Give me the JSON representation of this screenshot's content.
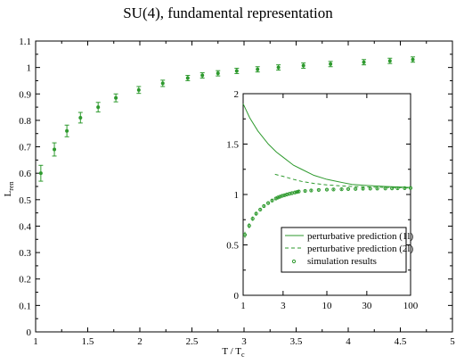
{
  "chart_data": [
    {
      "type": "scatter",
      "title": "SU(4), fundamental representation",
      "xlabel": "T / T",
      "xlabel_sub": "c",
      "ylabel": "L",
      "ylabel_sub": "ren",
      "xlim": [
        1,
        5
      ],
      "ylim": [
        0,
        1.1
      ],
      "x_ticks": [
        1,
        1.5,
        2,
        2.5,
        3,
        3.5,
        4,
        4.5,
        5
      ],
      "x_tick_labels": [
        "1",
        "1.5",
        "2",
        "2.5",
        "3",
        "3.5",
        "4",
        "4.5",
        "5"
      ],
      "y_ticks": [
        0,
        0.1,
        0.2,
        0.3,
        0.4,
        0.5,
        0.6,
        0.7,
        0.8,
        0.9,
        1,
        1.1
      ],
      "y_tick_labels": [
        "0",
        "0.1",
        "0.2",
        "0.3",
        "0.4",
        "0.5",
        "0.6",
        "0.7",
        "0.8",
        "0.9",
        "1",
        "1.1"
      ],
      "grid": false,
      "color": "#2e9a2e",
      "series": [
        {
          "x": [
            1.05,
            1.18,
            1.3,
            1.43,
            1.6,
            1.77,
            1.99,
            2.22,
            2.46,
            2.6,
            2.75,
            2.93,
            3.13,
            3.33,
            3.57,
            3.83,
            4.15,
            4.4,
            4.62
          ],
          "y": [
            0.6,
            0.69,
            0.76,
            0.81,
            0.85,
            0.885,
            0.915,
            0.94,
            0.96,
            0.97,
            0.978,
            0.987,
            0.993,
            1.0,
            1.007,
            1.013,
            1.02,
            1.025,
            1.03
          ],
          "err": [
            0.03,
            0.025,
            0.022,
            0.02,
            0.018,
            0.015,
            0.013,
            0.012,
            0.01,
            0.01,
            0.01,
            0.01,
            0.01,
            0.01,
            0.01,
            0.01,
            0.01,
            0.01,
            0.01
          ]
        }
      ]
    },
    {
      "type": "line",
      "x_scale": "log",
      "xlim": [
        1,
        100
      ],
      "ylim": [
        0,
        2
      ],
      "x_ticks": [
        1,
        3,
        10,
        30,
        100
      ],
      "x_tick_labels": [
        "1",
        "3",
        "10",
        "30",
        "100"
      ],
      "y_ticks": [
        0,
        0.5,
        1,
        1.5,
        2
      ],
      "y_tick_labels": [
        "0",
        "0.5",
        "1",
        "1.5",
        "2"
      ],
      "legend_position": "bottom-right",
      "color": "#2e9a2e",
      "series": [
        {
          "name": "perturbative prediction (1l)",
          "style": "solid",
          "x": [
            1,
            1.2,
            1.5,
            2,
            2.5,
            3,
            4,
            5,
            7,
            10,
            15,
            20,
            30,
            50,
            70,
            100
          ],
          "y": [
            1.9,
            1.76,
            1.63,
            1.5,
            1.42,
            1.37,
            1.29,
            1.25,
            1.19,
            1.15,
            1.12,
            1.1,
            1.09,
            1.08,
            1.075,
            1.07
          ]
        },
        {
          "name": "perturbative prediction (2l)",
          "style": "dashed",
          "x": [
            2.4,
            3,
            4,
            5,
            7,
            10,
            15,
            20,
            30,
            50,
            70,
            100
          ],
          "y": [
            1.2,
            1.18,
            1.15,
            1.13,
            1.11,
            1.095,
            1.085,
            1.08,
            1.075,
            1.07,
            1.068,
            1.065
          ]
        },
        {
          "name": "simulation results",
          "style": "markers",
          "x": [
            1.05,
            1.18,
            1.3,
            1.43,
            1.6,
            1.77,
            1.99,
            2.22,
            2.46,
            2.6,
            2.75,
            2.93,
            3.13,
            3.33,
            3.57,
            3.83,
            4.15,
            4.4,
            4.62,
            5.5,
            6.5,
            8,
            10,
            12,
            15,
            18,
            22,
            27,
            33,
            40,
            50,
            60,
            70,
            85,
            100
          ],
          "y": [
            0.6,
            0.69,
            0.76,
            0.81,
            0.85,
            0.885,
            0.915,
            0.94,
            0.96,
            0.97,
            0.978,
            0.987,
            0.993,
            1.0,
            1.007,
            1.013,
            1.02,
            1.025,
            1.03,
            1.035,
            1.04,
            1.045,
            1.048,
            1.05,
            1.052,
            1.054,
            1.055,
            1.057,
            1.058,
            1.059,
            1.06,
            1.061,
            1.062,
            1.063,
            1.064
          ],
          "err": [
            0.03,
            0.025,
            0.022,
            0.02,
            0.018,
            0.015,
            0.013,
            0.012,
            0.01,
            0.01,
            0.01,
            0.01,
            0.01,
            0.01,
            0.01,
            0.01,
            0.01,
            0.01,
            0.01,
            0.008,
            0.008,
            0.008,
            0.008,
            0.008,
            0.008,
            0.008,
            0.008,
            0.008,
            0.008,
            0.008,
            0.008,
            0.008,
            0.008,
            0.008,
            0.008
          ]
        }
      ]
    }
  ]
}
